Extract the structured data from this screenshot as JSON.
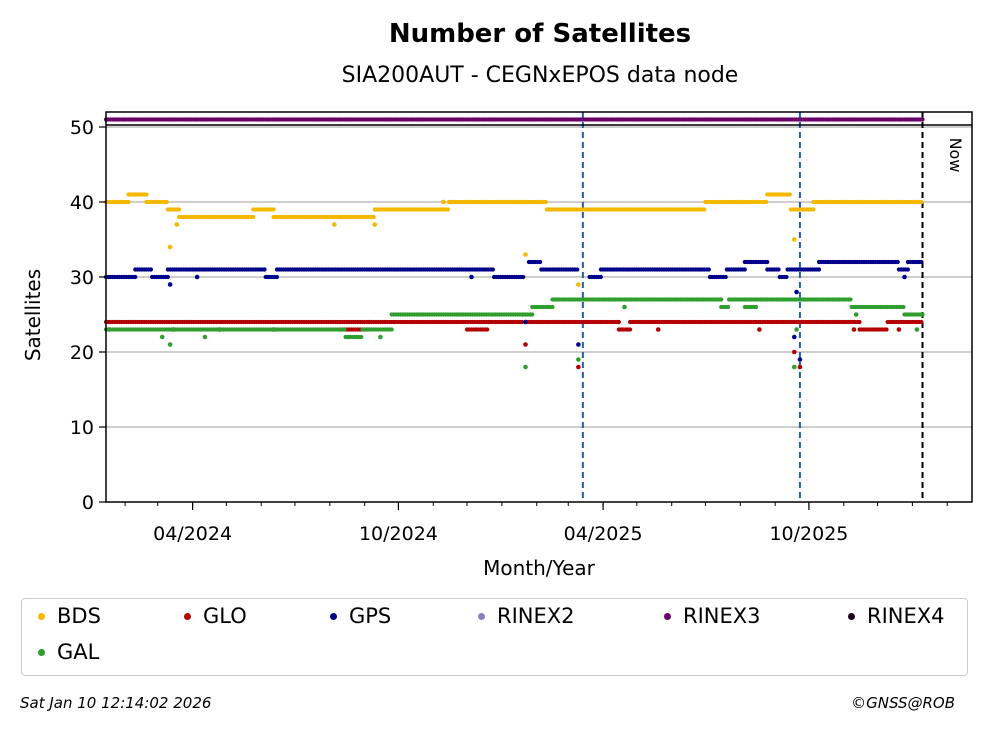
{
  "chart_data": {
    "type": "scatter",
    "title": "Number of Satellites",
    "subtitle": "SIA200AUT - CEGNxEPOS data node",
    "xlabel": "Month/Year",
    "ylabel": "Satellites",
    "x_range": [
      "2024-01-15",
      "2026-02-23"
    ],
    "ylim": [
      0,
      52
    ],
    "y_ticks": [
      0,
      10,
      20,
      30,
      40,
      50
    ],
    "x_ticks": [
      {
        "date": "2024-04-01",
        "label": "04/2024"
      },
      {
        "date": "2024-10-01",
        "label": "10/2024"
      },
      {
        "date": "2025-04-01",
        "label": "04/2025"
      },
      {
        "date": "2025-10-01",
        "label": "10/2025"
      }
    ],
    "grid": "horizontal",
    "now_label": "Now",
    "now_date": "2026-01-10",
    "event_markers": [
      "2025-03-14",
      "2025-09-23"
    ],
    "series": [
      {
        "name": "BDS",
        "color": "#f5b800",
        "points": [
          [
            "2024-01-15",
            "2024-02-04",
            40
          ],
          [
            "2024-02-04",
            "2024-02-20",
            41
          ],
          [
            "2024-02-20",
            "2024-03-10",
            40
          ],
          [
            "2024-03-10",
            "2024-03-20",
            39
          ],
          [
            "2024-03-20",
            "2024-05-25",
            38
          ],
          [
            "2024-05-25",
            "2024-06-12",
            39
          ],
          [
            "2024-06-12",
            "2024-08-20",
            38
          ],
          [
            "2024-08-20",
            "2024-09-10",
            38
          ],
          [
            "2024-09-10",
            "2024-09-25",
            39
          ],
          [
            "2024-09-25",
            "2024-11-15",
            39
          ],
          [
            "2024-11-15",
            "2025-01-20",
            40
          ],
          [
            "2025-01-20",
            "2025-02-10",
            40
          ],
          [
            "2025-02-10",
            "2025-07-01",
            39
          ],
          [
            "2025-07-01",
            "2025-08-25",
            40
          ],
          [
            "2025-08-25",
            "2025-09-15",
            41
          ],
          [
            "2025-09-15",
            "2025-10-05",
            39
          ],
          [
            "2025-10-05",
            "2026-01-10",
            40
          ]
        ],
        "outliers": [
          [
            "2024-03-12",
            34
          ],
          [
            "2024-03-18",
            37
          ],
          [
            "2024-08-05",
            37
          ],
          [
            "2024-09-10",
            37
          ],
          [
            "2024-11-10",
            40
          ],
          [
            "2025-01-22",
            33
          ],
          [
            "2025-03-10",
            29
          ],
          [
            "2025-09-18",
            35
          ]
        ]
      },
      {
        "name": "GLO",
        "color": "#b30000",
        "points": [
          [
            "2024-01-15",
            "2024-09-05",
            24
          ],
          [
            "2024-08-10",
            "2024-09-05",
            23
          ],
          [
            "2024-09-05",
            "2024-12-20",
            24
          ],
          [
            "2024-12-01",
            "2024-12-20",
            23
          ],
          [
            "2024-12-20",
            "2025-01-20",
            24
          ],
          [
            "2025-01-22",
            "2025-02-05",
            24
          ],
          [
            "2025-02-05",
            "2025-03-20",
            24
          ],
          [
            "2025-03-20",
            "2025-04-15",
            24
          ],
          [
            "2025-04-15",
            "2025-04-25",
            23
          ],
          [
            "2025-04-25",
            "2025-11-15",
            24
          ],
          [
            "2025-11-15",
            "2025-12-10",
            23
          ],
          [
            "2025-12-10",
            "2026-01-10",
            24
          ]
        ],
        "outliers": [
          [
            "2024-01-18",
            23
          ],
          [
            "2024-03-15",
            23
          ],
          [
            "2024-04-25",
            23
          ],
          [
            "2024-06-12",
            23
          ],
          [
            "2025-01-22",
            21
          ],
          [
            "2025-03-10",
            18
          ],
          [
            "2025-05-20",
            23
          ],
          [
            "2025-08-18",
            23
          ],
          [
            "2025-09-18",
            20
          ],
          [
            "2025-09-23",
            18
          ],
          [
            "2025-11-10",
            23
          ],
          [
            "2025-12-20",
            23
          ]
        ]
      },
      {
        "name": "GPS",
        "color": "#00008b",
        "points": [
          [
            "2024-01-15",
            "2024-02-10",
            30
          ],
          [
            "2024-02-10",
            "2024-02-25",
            31
          ],
          [
            "2024-02-25",
            "2024-03-10",
            30
          ],
          [
            "2024-03-10",
            "2024-06-05",
            31
          ],
          [
            "2024-06-05",
            "2024-06-15",
            30
          ],
          [
            "2024-06-15",
            "2024-12-25",
            31
          ],
          [
            "2024-12-25",
            "2025-01-20",
            30
          ],
          [
            "2025-01-25",
            "2025-02-05",
            32
          ],
          [
            "2025-02-05",
            "2025-03-10",
            31
          ],
          [
            "2025-03-20",
            "2025-03-30",
            30
          ],
          [
            "2025-03-30",
            "2025-07-05",
            31
          ],
          [
            "2025-07-05",
            "2025-07-20",
            30
          ],
          [
            "2025-07-20",
            "2025-08-05",
            31
          ],
          [
            "2025-08-05",
            "2025-08-25",
            32
          ],
          [
            "2025-08-25",
            "2025-09-05",
            31
          ],
          [
            "2025-09-05",
            "2025-09-12",
            30
          ],
          [
            "2025-09-12",
            "2025-10-10",
            31
          ],
          [
            "2025-10-10",
            "2025-12-20",
            32
          ],
          [
            "2025-12-20",
            "2025-12-28",
            31
          ],
          [
            "2025-12-28",
            "2026-01-10",
            32
          ]
        ],
        "outliers": [
          [
            "2024-03-12",
            29
          ],
          [
            "2024-04-05",
            30
          ],
          [
            "2024-12-05",
            30
          ],
          [
            "2025-01-22",
            24
          ],
          [
            "2025-03-10",
            21
          ],
          [
            "2025-09-18",
            22
          ],
          [
            "2025-09-20",
            28
          ],
          [
            "2025-09-23",
            19
          ],
          [
            "2025-12-25",
            30
          ]
        ]
      },
      {
        "name": "RINEX2",
        "color": "#8c7dc0",
        "points": []
      },
      {
        "name": "RINEX3",
        "color": "#6b006b",
        "points": [
          [
            "2024-01-15",
            "2026-01-10",
            51
          ]
        ],
        "outliers": []
      },
      {
        "name": "RINEX4",
        "color": "#1a001a",
        "points": []
      },
      {
        "name": "GAL",
        "color": "#2f9e2f",
        "points": [
          [
            "2024-01-15",
            "2024-08-15",
            23
          ],
          [
            "2024-08-15",
            "2024-08-30",
            22
          ],
          [
            "2024-08-30",
            "2024-09-25",
            23
          ],
          [
            "2024-09-25",
            "2025-01-20",
            25
          ],
          [
            "2025-01-20",
            "2025-01-28",
            25
          ],
          [
            "2025-01-28",
            "2025-02-15",
            26
          ],
          [
            "2025-02-15",
            "2025-07-15",
            27
          ],
          [
            "2025-07-15",
            "2025-07-22",
            26
          ],
          [
            "2025-07-22",
            "2025-11-08",
            27
          ],
          [
            "2025-08-05",
            "2025-08-15",
            26
          ],
          [
            "2025-11-08",
            "2025-12-25",
            26
          ],
          [
            "2025-12-25",
            "2026-01-10",
            25
          ]
        ],
        "outliers": [
          [
            "2024-03-05",
            22
          ],
          [
            "2024-03-12",
            21
          ],
          [
            "2024-04-12",
            22
          ],
          [
            "2024-09-15",
            22
          ],
          [
            "2025-01-22",
            18
          ],
          [
            "2025-03-10",
            19
          ],
          [
            "2025-04-20",
            26
          ],
          [
            "2025-09-18",
            18
          ],
          [
            "2025-09-20",
            23
          ],
          [
            "2025-11-12",
            25
          ],
          [
            "2026-01-05",
            23
          ]
        ]
      }
    ]
  },
  "legend": {
    "items": [
      {
        "name": "BDS",
        "color": "#f5b800"
      },
      {
        "name": "GLO",
        "color": "#b30000"
      },
      {
        "name": "GPS",
        "color": "#00008b"
      },
      {
        "name": "RINEX2",
        "color": "#8c7dc0"
      },
      {
        "name": "RINEX3",
        "color": "#6b006b"
      },
      {
        "name": "RINEX4",
        "color": "#1a001a"
      },
      {
        "name": "GAL",
        "color": "#2f9e2f"
      }
    ]
  },
  "footer": {
    "timestamp": "Sat Jan 10 12:14:02 2026",
    "copyright": "©GNSS@ROB"
  }
}
